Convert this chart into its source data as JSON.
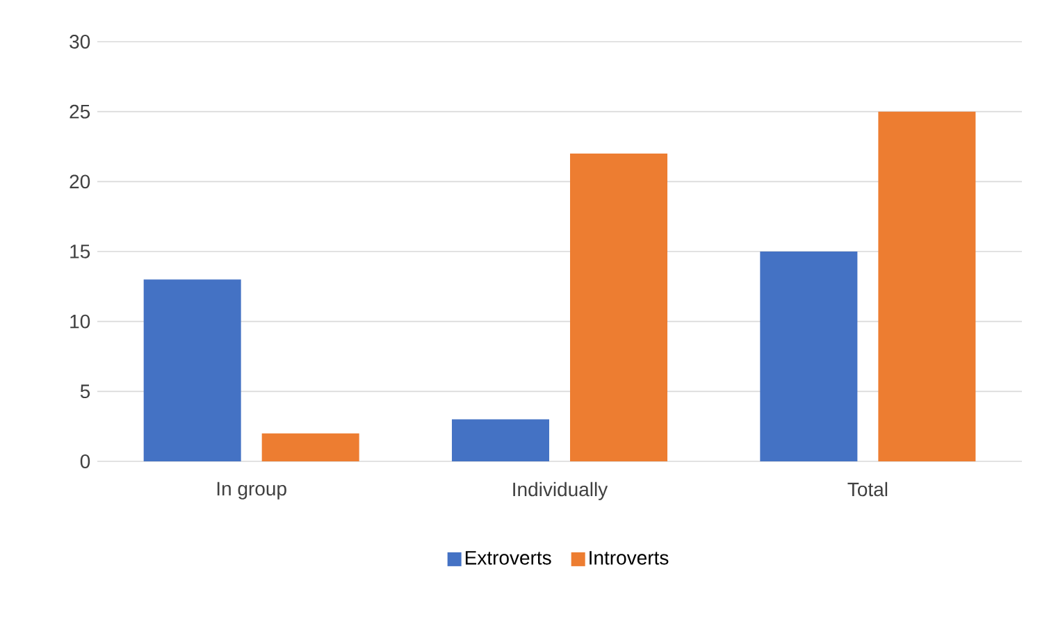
{
  "chart_data": {
    "type": "bar",
    "categories": [
      "In group",
      "Individually",
      "Total"
    ],
    "series": [
      {
        "name": "Extroverts",
        "color": "#4472c4",
        "values": [
          13,
          3,
          15
        ]
      },
      {
        "name": "Introverts",
        "color": "#ed7d31",
        "values": [
          2,
          22,
          25
        ]
      }
    ],
    "ylim": [
      0,
      30
    ],
    "yticks": [
      0,
      5,
      10,
      15,
      20,
      25,
      30
    ],
    "grid": "y",
    "legend": "bottom"
  }
}
